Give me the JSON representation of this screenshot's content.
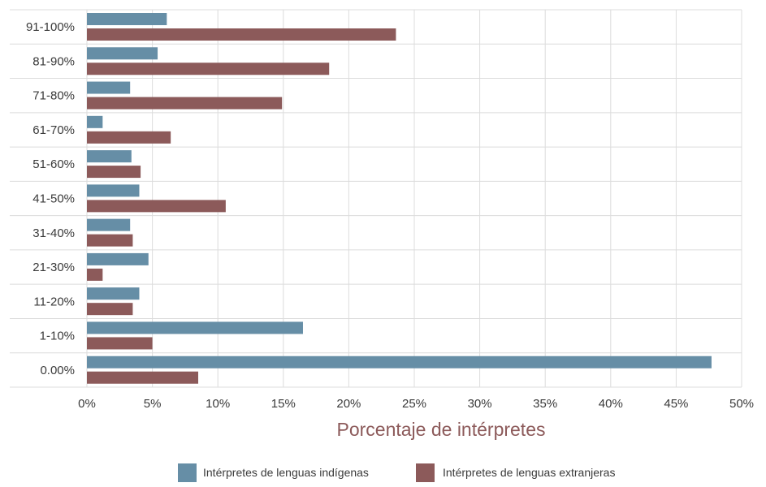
{
  "chart_data": {
    "type": "bar",
    "orientation": "horizontal",
    "categories": [
      "91-100%",
      "81-90%",
      "71-80%",
      "61-70%",
      "51-60%",
      "41-50%",
      "31-40%",
      "21-30%",
      "11-20%",
      "1-10%",
      "0.00%"
    ],
    "series": [
      {
        "name": "Intérpretes de lenguas indígenas",
        "color": "#668ea6",
        "values": [
          6.1,
          5.4,
          3.3,
          1.2,
          3.4,
          4.0,
          3.3,
          4.7,
          4.0,
          16.5,
          47.7
        ]
      },
      {
        "name": "Intérpretes de lenguas extranjeras",
        "color": "#8c5a5a",
        "values": [
          23.6,
          18.5,
          14.9,
          6.4,
          4.1,
          10.6,
          3.5,
          1.2,
          3.5,
          5.0,
          8.5
        ]
      }
    ],
    "xlim": [
      0,
      50
    ],
    "x_ticks": [
      "0%",
      "5%",
      "10%",
      "15%",
      "20%",
      "25%",
      "30%",
      "35%",
      "40%",
      "45%",
      "50%"
    ],
    "xlabel": "Porcentaje de intérpretes",
    "ylabel": "",
    "title": "",
    "grid": true,
    "legend_position": "bottom"
  }
}
